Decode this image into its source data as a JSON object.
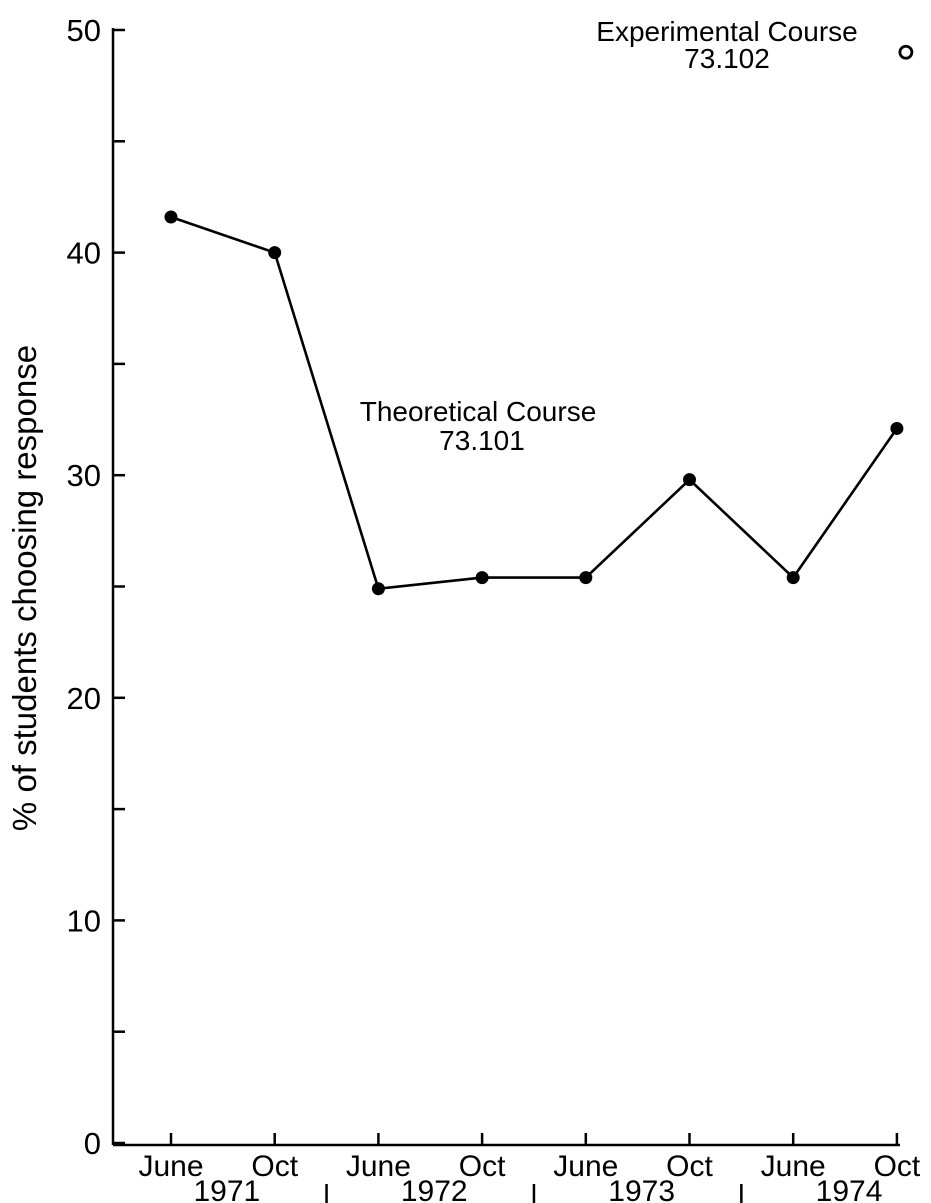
{
  "chart_data": {
    "type": "line",
    "title": "",
    "xlabel": "",
    "ylabel": "% of students choosing response",
    "ylim": [
      0,
      50
    ],
    "y_ticks_labeled": [
      0,
      10,
      20,
      30,
      40,
      50
    ],
    "y_ticks_minor": [
      5,
      15,
      25,
      35,
      45
    ],
    "grid": false,
    "categories": [
      "June",
      "Oct",
      "June",
      "Oct",
      "June",
      "Oct",
      "June",
      "Oct"
    ],
    "years": [
      "1971",
      "1972",
      "1973",
      "1974"
    ],
    "series": [
      {
        "name": "Theoretical Course 73.101",
        "label_line1": "Theoretical Course",
        "label_line2": "73.101",
        "marker": "filled-circle",
        "values": [
          41.6,
          40.0,
          24.9,
          25.4,
          25.4,
          29.8,
          25.4,
          32.1
        ]
      },
      {
        "name": "Experimental Course 73.102",
        "label_line1": "Experimental Course",
        "label_line2": "73.102",
        "marker": "open-circle",
        "points": [
          {
            "category_index": 7,
            "value": 49.0
          }
        ]
      }
    ]
  },
  "colors": {
    "ink": "#000000",
    "background": "#ffffff"
  }
}
